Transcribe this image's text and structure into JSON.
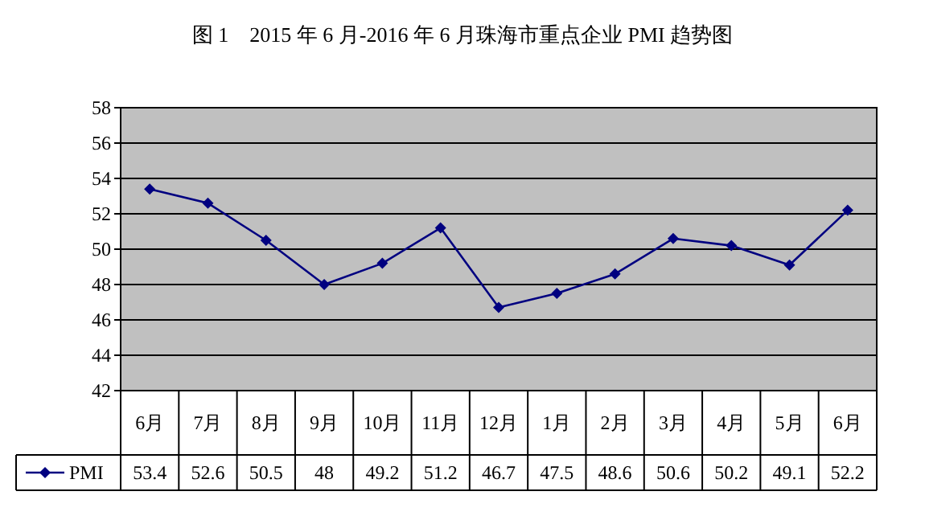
{
  "chart_data": {
    "type": "line",
    "title": "图 1　2015 年 6 月-2016 年 6 月珠海市重点企业 PMI 趋势图",
    "categories": [
      "6月",
      "7月",
      "8月",
      "9月",
      "10月",
      "11月",
      "12月",
      "1月",
      "2月",
      "3月",
      "4月",
      "5月",
      "6月"
    ],
    "series": [
      {
        "name": "PMI",
        "color": "#000080",
        "values": [
          53.4,
          52.6,
          50.5,
          48,
          49.2,
          51.2,
          46.7,
          47.5,
          48.6,
          50.6,
          50.2,
          49.1,
          52.2
        ]
      }
    ],
    "ylim": [
      42,
      58
    ],
    "yticks": [
      42,
      44,
      46,
      48,
      50,
      52,
      54,
      56,
      58
    ],
    "grid": "y",
    "marker": "diamond",
    "line_style": "solid",
    "legend": "bottom",
    "data_labels": true
  }
}
